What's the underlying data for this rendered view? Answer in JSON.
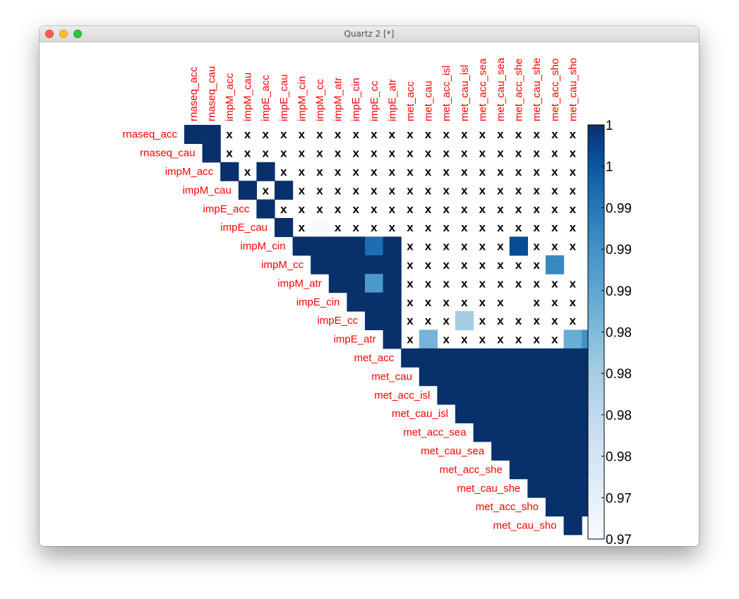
{
  "window": {
    "title": "Quartz 2 [*]"
  },
  "chart_data": {
    "type": "heatmap",
    "title": "",
    "row_labels": [
      "rnaseq_acc",
      "rnaseq_cau",
      "impM_acc",
      "impM_cau",
      "impE_acc",
      "impE_cau",
      "impM_cin",
      "impM_cc",
      "impM_atr",
      "impE_cin",
      "impE_cc",
      "impE_atr",
      "met_acc",
      "met_cau",
      "met_acc_isl",
      "met_cau_isl",
      "met_acc_sea",
      "met_cau_sea",
      "met_acc_she",
      "met_cau_she",
      "met_acc_sho",
      "met_cau_sho"
    ],
    "col_labels": [
      "rnaseq_acc",
      "rnaseq_cau",
      "impM_acc",
      "impM_cau",
      "impE_acc",
      "impE_cau",
      "impM_cin",
      "impM_cc",
      "impM_atr",
      "impE_cin",
      "impE_cc",
      "impE_atr",
      "met_acc",
      "met_cau",
      "met_acc_isl",
      "met_cau_isl",
      "met_acc_sea",
      "met_cau_sea",
      "met_acc_she",
      "met_cau_she",
      "met_acc_sho",
      "met_cau_sho"
    ],
    "layout": "upper-triangle",
    "colorbar": {
      "tick_labels": [
        "1",
        "1",
        "0.99",
        "0.99",
        "0.99",
        "0.98",
        "0.98",
        "0.98",
        "0.98",
        "0.97",
        "0.97"
      ],
      "low_color": "#f7fbff",
      "high_color": "#08306b"
    },
    "cells": [
      [
        1,
        1,
        null,
        null,
        null,
        null,
        null,
        null,
        null,
        null,
        null,
        null,
        null,
        null,
        null,
        null,
        null,
        null,
        null,
        null,
        null,
        null
      ],
      [
        1,
        null,
        null,
        null,
        null,
        null,
        null,
        null,
        null,
        null,
        null,
        null,
        null,
        null,
        null,
        null,
        null,
        null,
        null,
        null,
        null
      ],
      [
        1,
        null,
        1,
        null,
        null,
        null,
        null,
        null,
        null,
        null,
        null,
        null,
        null,
        null,
        null,
        null,
        null,
        null,
        null,
        null
      ],
      [
        1,
        null,
        1,
        null,
        null,
        null,
        null,
        null,
        null,
        null,
        null,
        null,
        null,
        null,
        null,
        null,
        null,
        null,
        null
      ],
      [
        1,
        null,
        null,
        null,
        null,
        null,
        null,
        null,
        null,
        null,
        null,
        null,
        null,
        null,
        null,
        null,
        null,
        null
      ],
      [
        1,
        null,
        0.97,
        null,
        null,
        null,
        null,
        null,
        null,
        null,
        null,
        null,
        null,
        null,
        null,
        null,
        null
      ],
      [
        1,
        1,
        1,
        1,
        0.995,
        1,
        null,
        null,
        null,
        null,
        null,
        null,
        0.998,
        null,
        null,
        null
      ],
      [
        1,
        1,
        1,
        1,
        1,
        null,
        null,
        null,
        null,
        null,
        null,
        null,
        null,
        0.992
      ],
      [
        1,
        1,
        0.99,
        1,
        null,
        null,
        null,
        null,
        null,
        null,
        null,
        null,
        null,
        null
      ],
      [
        1,
        1,
        1,
        null,
        null,
        null,
        null,
        null,
        null,
        "blank",
        null,
        null,
        null
      ],
      [
        1,
        1,
        null,
        null,
        null,
        0.982,
        null,
        null,
        null,
        null,
        null,
        null
      ],
      [
        1,
        null,
        0.986,
        null,
        null,
        null,
        null,
        null,
        null,
        null,
        0.987,
        0.991
      ],
      [
        1,
        1,
        1,
        1,
        1,
        1,
        1,
        1,
        1,
        1,
        1
      ],
      [
        1,
        1,
        1,
        1,
        1,
        1,
        1,
        1,
        1,
        1
      ],
      [
        1,
        1,
        1,
        1,
        1,
        1,
        1,
        1,
        1
      ],
      [
        1,
        1,
        1,
        1,
        1,
        1,
        1,
        1
      ],
      [
        1,
        1,
        1,
        1,
        1,
        1,
        1
      ],
      [
        1,
        1,
        1,
        1,
        1,
        1
      ],
      [
        1,
        1,
        1,
        1,
        1
      ],
      [
        1,
        1,
        1,
        1
      ],
      [
        1,
        1,
        1
      ],
      [
        1
      ]
    ]
  }
}
